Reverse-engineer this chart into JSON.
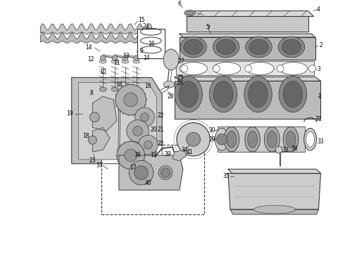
{
  "background_color": "#ffffff",
  "line_color": "#333333",
  "label_color": "#000000",
  "fig_width": 4.9,
  "fig_height": 3.6,
  "dpi": 100
}
